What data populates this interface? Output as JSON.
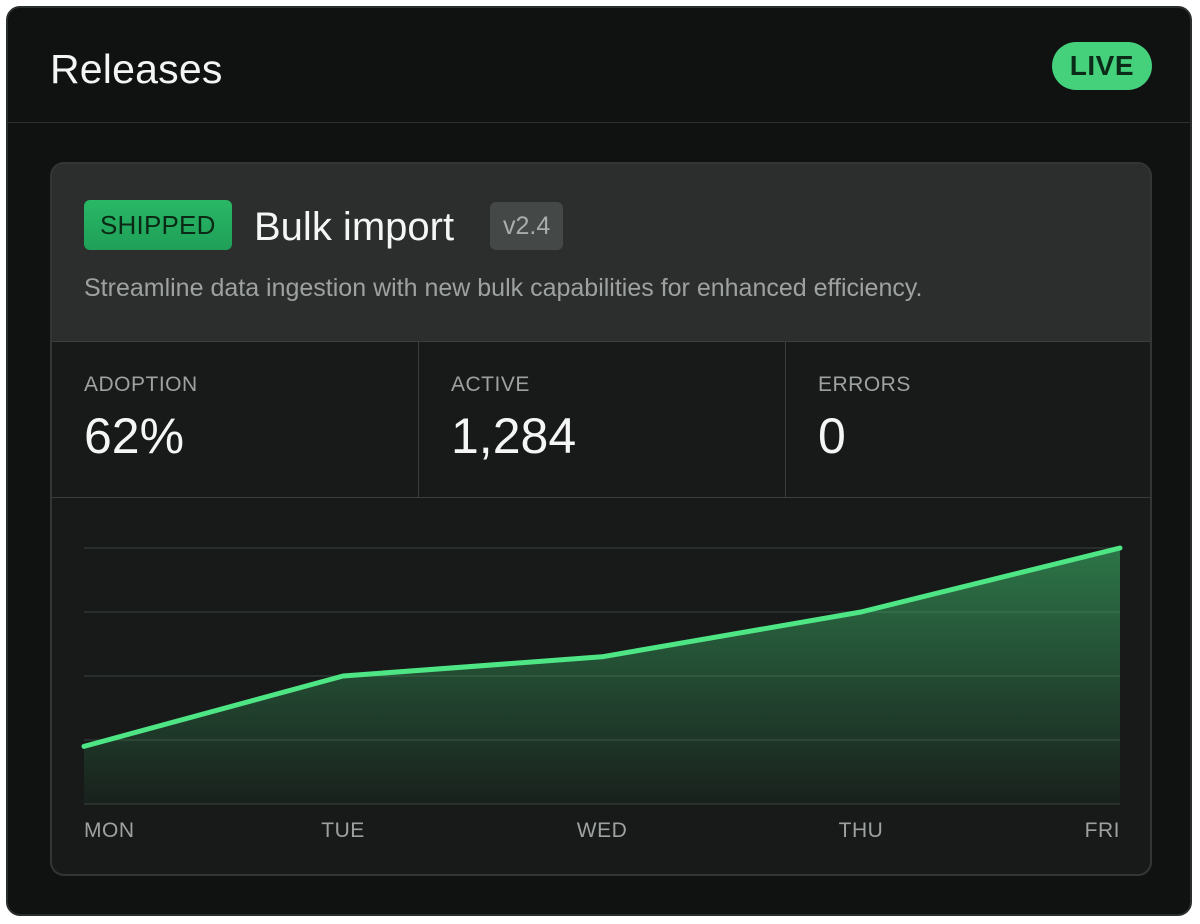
{
  "header": {
    "title": "Releases",
    "status_badge": "LIVE"
  },
  "release": {
    "status": "SHIPPED",
    "name": "Bulk import",
    "version": "v2.4",
    "description": "Streamline data ingestion with new bulk capabilities for enhanced efficiency."
  },
  "stats": [
    {
      "label": "ADOPTION",
      "value": "62%"
    },
    {
      "label": "ACTIVE",
      "value": "1,284"
    },
    {
      "label": "ERRORS",
      "value": "0"
    }
  ],
  "colors": {
    "accent": "#45d07c",
    "line": "#4ee585",
    "background": "#0f1211"
  },
  "chart_data": {
    "type": "area",
    "categories": [
      "MON",
      "TUE",
      "WED",
      "THU",
      "FRI"
    ],
    "values": [
      0.9,
      2.0,
      2.3,
      3.0,
      4.0
    ],
    "ylim": [
      0,
      4.0
    ],
    "grid": true,
    "title": "",
    "xlabel": "",
    "ylabel": ""
  }
}
